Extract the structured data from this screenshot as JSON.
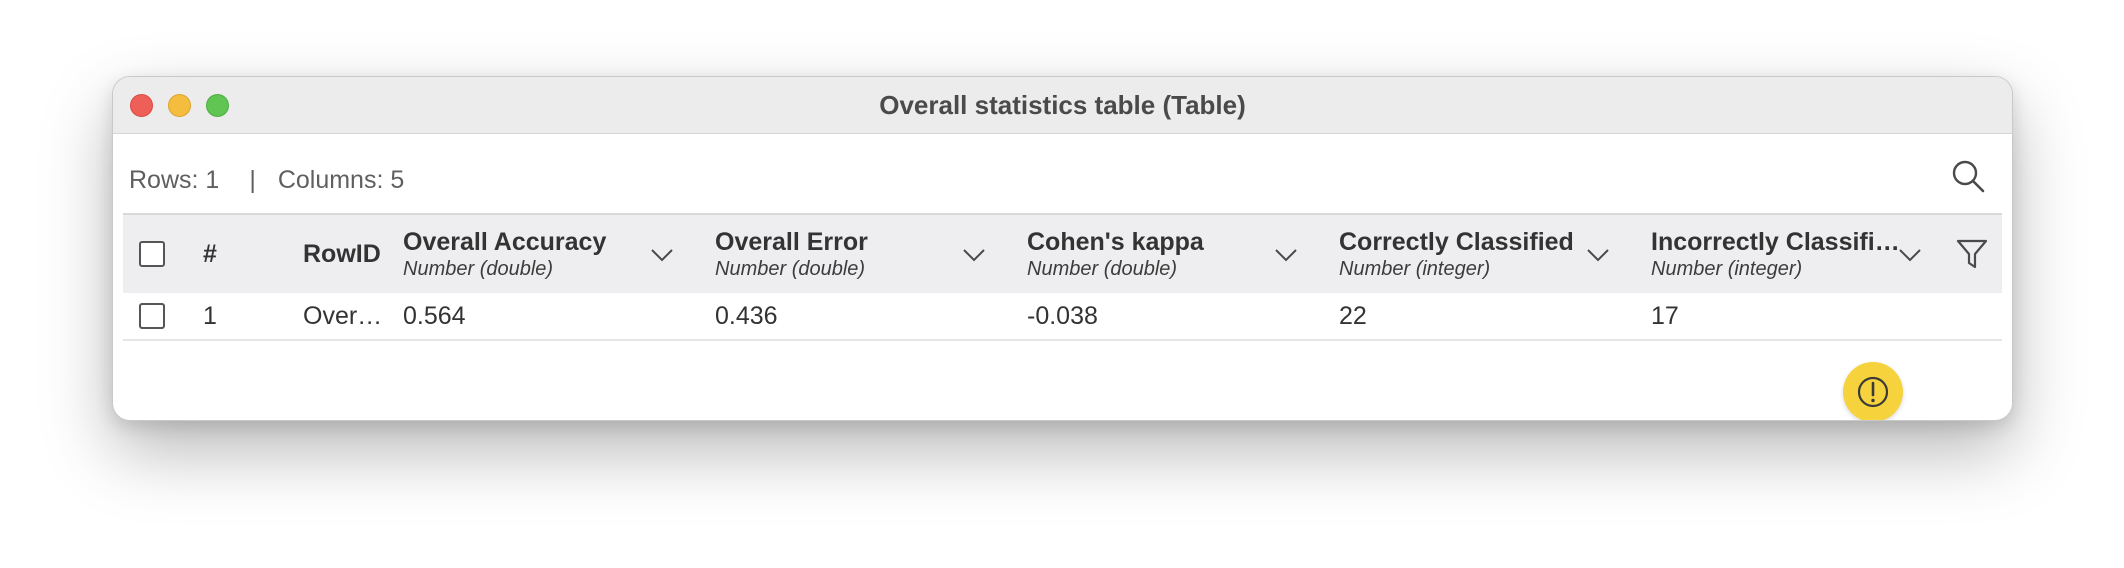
{
  "window": {
    "title": "Overall statistics table (Table)"
  },
  "info": {
    "rows": "Rows: 1",
    "separator": "|",
    "columns": "Columns: 5"
  },
  "table": {
    "header": {
      "index": "#",
      "rowid": "RowID",
      "columns": [
        {
          "name": "Overall Accuracy",
          "type": "Number (double)"
        },
        {
          "name": "Overall Error",
          "type": "Number (double)"
        },
        {
          "name": "Cohen's kappa",
          "type": "Number (double)"
        },
        {
          "name": "Correctly Classified",
          "type": "Number (integer)"
        },
        {
          "name": "Incorrectly Classifi…",
          "type": "Number (integer)"
        }
      ]
    },
    "rows": [
      {
        "index": "1",
        "rowid": "Over…",
        "values": [
          "0.564",
          "0.436",
          "-0.038",
          "22",
          "17"
        ]
      }
    ]
  },
  "icons": {
    "search": "search-icon",
    "filter": "filter-icon",
    "chevron": "chevron-down-icon",
    "warning": "warning-icon"
  },
  "colors": {
    "close": "#ee5f57",
    "minimize": "#f5bd3d",
    "maximize": "#61c554",
    "warning": "#f6d23c",
    "header_bg": "#eeeef0"
  }
}
